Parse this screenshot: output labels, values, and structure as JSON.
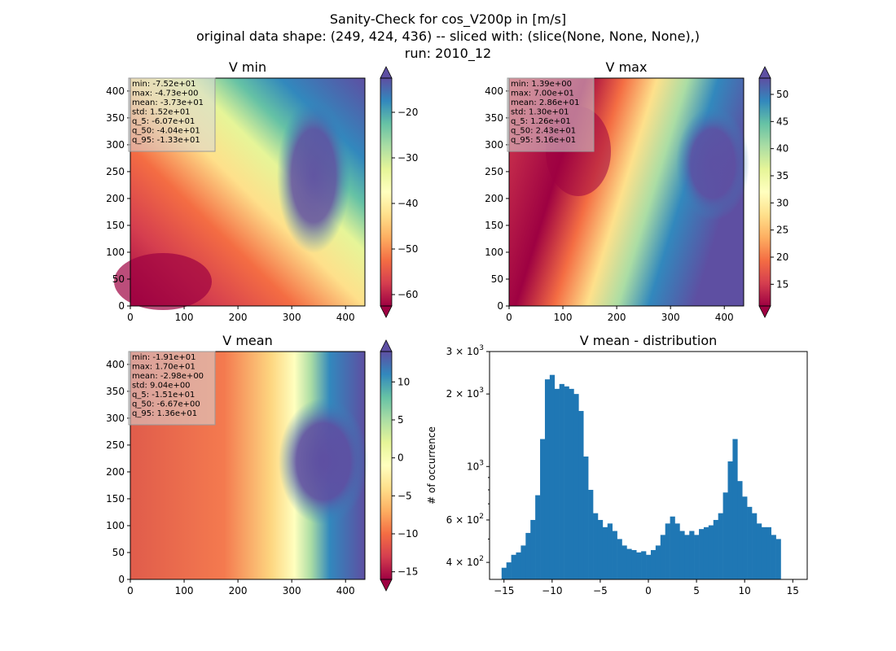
{
  "suptitle": {
    "line1": "Sanity-Check for cos_V200p in [m/s]",
    "line2": "original data shape: (249, 424, 436) -- sliced with: (slice(None, None, None),)",
    "line3": "run: 2010_12"
  },
  "colormap": "Spectral",
  "panels": [
    {
      "title": "V min",
      "xticks": [
        "0",
        "100",
        "200",
        "300",
        "400"
      ],
      "yticks": [
        "0",
        "50",
        "100",
        "150",
        "200",
        "250",
        "300",
        "350",
        "400"
      ],
      "colorbar_ticks": [
        "−60",
        "−50",
        "−40",
        "−30",
        "−20"
      ],
      "stats": [
        "min: -7.52e+01",
        "max: -4.73e+00",
        "mean: -3.73e+01",
        "std: 1.52e+01",
        "q_5: -6.07e+01",
        "q_50: -4.04e+01",
        "q_95: -1.33e+01"
      ]
    },
    {
      "title": "V max",
      "xticks": [
        "0",
        "100",
        "200",
        "300",
        "400"
      ],
      "yticks": [
        "0",
        "50",
        "100",
        "150",
        "200",
        "250",
        "300",
        "350",
        "400"
      ],
      "colorbar_ticks": [
        "15",
        "20",
        "25",
        "30",
        "35",
        "40",
        "45",
        "50"
      ],
      "stats": [
        "min: 1.39e+00",
        "max: 7.00e+01",
        "mean: 2.86e+01",
        "std: 1.30e+01",
        "q_5: 1.26e+01",
        "q_50: 2.43e+01",
        "q_95: 5.16e+01"
      ]
    },
    {
      "title": "V mean",
      "xticks": [
        "0",
        "100",
        "200",
        "300",
        "400"
      ],
      "yticks": [
        "0",
        "50",
        "100",
        "150",
        "200",
        "250",
        "300",
        "350",
        "400"
      ],
      "colorbar_ticks": [
        "−15",
        "−10",
        "−5",
        "0",
        "5",
        "10"
      ],
      "stats": [
        "min: -1.91e+01",
        "max: 1.70e+01",
        "mean: -2.98e+00",
        "std: 9.04e+00",
        "q_5: -1.51e+01",
        "q_50: -6.67e+00",
        "q_95: 1.36e+01"
      ]
    }
  ],
  "chart_data": [
    {
      "type": "heatmap",
      "title": "V min",
      "xlim": [
        0,
        436
      ],
      "ylim": [
        0,
        424
      ],
      "colorbar_range": [
        -62.5,
        -12.5
      ],
      "colorbar_ticks": [
        -60,
        -50,
        -40,
        -30,
        -20
      ],
      "colorbar_extend": "both"
    },
    {
      "type": "heatmap",
      "title": "V max",
      "xlim": [
        0,
        436
      ],
      "ylim": [
        0,
        424
      ],
      "colorbar_range": [
        11,
        53
      ],
      "colorbar_ticks": [
        15,
        20,
        25,
        30,
        35,
        40,
        45,
        50
      ],
      "colorbar_extend": "both"
    },
    {
      "type": "heatmap",
      "title": "V mean",
      "xlim": [
        0,
        436
      ],
      "ylim": [
        0,
        424
      ],
      "colorbar_range": [
        -16,
        14
      ],
      "colorbar_ticks": [
        -15,
        -10,
        -5,
        0,
        5,
        10
      ],
      "colorbar_extend": "both"
    },
    {
      "type": "bar",
      "title": "V mean - distribution",
      "ylabel": "# of occurrence",
      "xlabel": "",
      "yscale": "log",
      "xlim": [
        -16.5,
        16.5
      ],
      "ylim": [
        340,
        3000
      ],
      "xticks": [
        "−15",
        "−10",
        "−5",
        "0",
        "5",
        "10",
        "15"
      ],
      "yticks": [
        {
          "base": "4",
          "exp": "2",
          "mult": true
        },
        {
          "base": "6",
          "exp": "2",
          "mult": true
        },
        {
          "base": "10",
          "exp": "3",
          "mult": false
        },
        {
          "base": "2",
          "exp": "3",
          "mult": true
        },
        {
          "base": "3",
          "exp": "3",
          "mult": true
        }
      ],
      "color": "#1f77b4",
      "bin_x": [
        -15.0,
        -14.5,
        -14.0,
        -13.5,
        -13.0,
        -12.5,
        -12.0,
        -11.5,
        -11.0,
        -10.5,
        -10.0,
        -9.5,
        -9.0,
        -8.5,
        -8.0,
        -7.5,
        -7.0,
        -6.5,
        -6.0,
        -5.5,
        -5.0,
        -4.5,
        -4.0,
        -3.5,
        -3.0,
        -2.5,
        -2.0,
        -1.5,
        -1.0,
        -0.5,
        0.0,
        0.5,
        1.0,
        1.5,
        2.0,
        2.5,
        3.0,
        3.5,
        4.0,
        4.5,
        5.0,
        5.5,
        6.0,
        6.5,
        7.0,
        7.5,
        8.0,
        8.5,
        9.0,
        9.5,
        10.0,
        10.5,
        11.0,
        11.5,
        12.0,
        12.5,
        13.0,
        13.5
      ],
      "values": [
        380,
        400,
        430,
        440,
        470,
        530,
        600,
        760,
        1300,
        2300,
        2400,
        2100,
        2200,
        2150,
        2100,
        2000,
        1700,
        1100,
        800,
        640,
        600,
        560,
        580,
        540,
        500,
        470,
        455,
        450,
        440,
        445,
        430,
        450,
        470,
        520,
        580,
        620,
        580,
        540,
        520,
        540,
        520,
        550,
        560,
        570,
        600,
        640,
        780,
        1050,
        1300,
        870,
        750,
        680,
        640,
        580,
        560,
        560,
        520,
        500
      ]
    }
  ]
}
